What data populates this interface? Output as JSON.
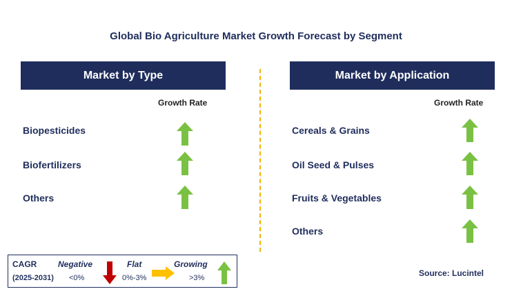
{
  "title": "Global Bio Agriculture Market Growth Forecast by Segment",
  "left_panel": {
    "header": "Market by Type",
    "growth_label": "Growth Rate",
    "rows": [
      {
        "label": "Biopesticides",
        "trend": "growing"
      },
      {
        "label": "Biofertilizers",
        "trend": "growing"
      },
      {
        "label": "Others",
        "trend": "growing"
      }
    ]
  },
  "right_panel": {
    "header": "Market by Application",
    "growth_label": "Growth Rate",
    "rows": [
      {
        "label": "Cereals & Grains",
        "trend": "growing"
      },
      {
        "label": "Oil Seed & Pulses",
        "trend": "growing"
      },
      {
        "label": "Fruits & Vegetables",
        "trend": "growing"
      },
      {
        "label": "Others",
        "trend": "growing"
      }
    ]
  },
  "legend": {
    "cagr": "CAGR",
    "period": "(2025-2031)",
    "negative": {
      "label": "Negative",
      "range": "<0%",
      "icon": "down-arrow-icon",
      "color": "#c00000"
    },
    "flat": {
      "label": "Flat",
      "range": "0%-3%",
      "icon": "right-arrow-icon",
      "color": "#ffc000"
    },
    "growing": {
      "label": "Growing",
      "range": ">3%",
      "icon": "up-arrow-icon",
      "color": "#7ac143"
    }
  },
  "source": "Source: Lucintel",
  "colors": {
    "header_bg": "#1f2d5c",
    "divider": "#f0b400",
    "growth_arrow": "#7ac143"
  }
}
